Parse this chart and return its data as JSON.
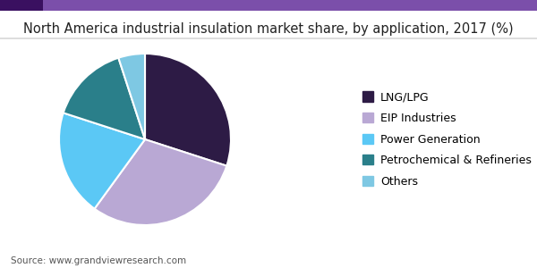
{
  "title": "North America industrial insulation market share, by application, 2017 (%)",
  "labels": [
    "LNG/LPG",
    "EIP Industries",
    "Power Generation",
    "Petrochemical & Refineries",
    "Others"
  ],
  "sizes": [
    30,
    30,
    20,
    15,
    5
  ],
  "colors": [
    "#2d1b45",
    "#b9a8d4",
    "#5bc8f5",
    "#2a7f8a",
    "#7ec8e3"
  ],
  "source": "Source: www.grandviewresearch.com",
  "startangle": 90,
  "background_color": "#ffffff",
  "title_fontsize": 10.5,
  "legend_fontsize": 9,
  "source_fontsize": 7.5,
  "header_bar_color": "#4a2070",
  "header_accent_color": "#6b3fa0",
  "thin_bar_color": "#6030a0"
}
